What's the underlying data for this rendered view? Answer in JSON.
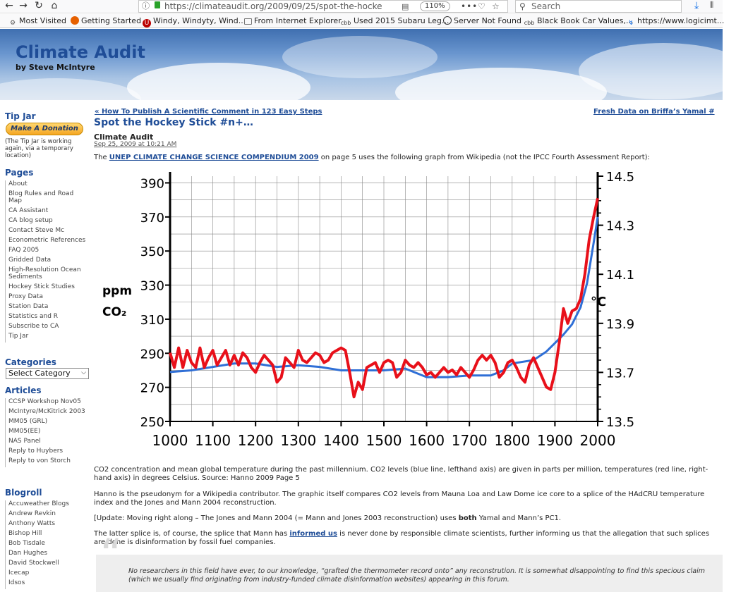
{
  "browser": {
    "url": "https://climateaudit.org/2009/09/25/spot-the-hocke",
    "zoom": "110%",
    "search_placeholder": "Search",
    "bookmarks": [
      "Most Visited",
      "Getting Started",
      "Windy, Windyty, Wind...",
      "From Internet Explorer",
      "Used 2015 Subaru Leg...",
      "Server Not Found",
      "Black Book Car Values,...",
      "https://www.logicimt..."
    ]
  },
  "site": {
    "title": "Climate Audit",
    "tagline": "by Steve McIntyre"
  },
  "sidebar": {
    "tipjar_heading": "Tip Jar",
    "donate_label": "Make A Donation",
    "tipjar_note": "(The Tip Jar is working again, via a temporary location)",
    "pages_heading": "Pages",
    "pages": [
      "About",
      "Blog Rules and Road Map",
      "CA Assistant",
      "CA blog setup",
      "Contact Steve Mc",
      "Econometric References",
      "FAQ 2005",
      "Gridded Data",
      "High-Resolution Ocean Sediments",
      "Hockey Stick Studies",
      "Proxy Data",
      "Station Data",
      "Statistics and R",
      "Subscribe to CA",
      "Tip Jar"
    ],
    "categories_heading": "Categories",
    "category_select": "Select Category",
    "articles_heading": "Articles",
    "articles": [
      "CCSP Workshop Nov05",
      "McIntyre/McKitrick 2003",
      "MM05 (GRL)",
      "MM05(EE)",
      "NAS Panel",
      "Reply to Huybers",
      "Reply to von Storch"
    ],
    "blogroll_heading": "Blogroll",
    "blogroll": [
      "Accuweather Blogs",
      "Andrew Revkin",
      "Anthony Watts",
      "Bishop Hill",
      "Bob Tisdale",
      "Dan Hughes",
      "David Stockwell",
      "Icecap",
      "Idsos"
    ]
  },
  "post": {
    "prev_link": "« How To Publish A Scientific Comment in 123 Easy Steps",
    "next_link": "Fresh Data on Briffa’s Yamal #",
    "title": "Spot the Hockey Stick #n+…",
    "author": "Climate Audit",
    "date": "Sep 25, 2009 at 10:21 AM",
    "intro_pre": "The",
    "intro_link": "UNEP CLIMATE CHANGE SCIENCE COMPENDIUM 2009",
    "intro_post": "on page 5 uses the following graph from Wikipedia (not the IPCC Fourth Assessment Report):",
    "caption": "CO2 concentration and mean global temperature during the past millennium. CO2 levels (blue line, lefthand axis) are given in parts per million, temperatures (red line, right-hand axis) in degrees Celsius. Source: Hanno 2009 Page 5",
    "p2": "Hanno is the pseudonym for a Wikipedia contributor. The graphic itself compares CO2 levels from Mauna Loa and Law Dome ice core to a splice of the HAdCRU temperature index and the Jones and Mann 2004 reconstruction.",
    "p3_pre": "[Update: Moving right along – The Jones and Mann 2004 (= Mann and Jones 2003 reconstruction) uses",
    "p3_bold": "both",
    "p3_post": "Yamal and Mann’s PC1.",
    "p4_pre": "The latter splice is, of course, the splice that Mann has",
    "p4_link": "informed us",
    "p4_post": "is never done by responsible climate scientists, further informing us that the allegation that such splices are done is disinformation by fossil fuel companies.",
    "quote": "No researchers in this field have ever, to our knowledge, “grafted the thermometer record onto” any reconstrution. It is somewhat disappointing to find this specious claim (which we usually find originating from industry-funded climate disinformation websites) appearing in this forum."
  },
  "chart_data": {
    "type": "line",
    "title": "",
    "xlabel": "",
    "ylabel_left_top": "ppm",
    "ylabel_left_bottom": "CO₂",
    "ylabel_right": "°C",
    "xlim": [
      1000,
      2000
    ],
    "ylim_left": [
      250,
      390
    ],
    "ylim_right": [
      13.5,
      14.5
    ],
    "x_ticks": [
      1000,
      1100,
      1200,
      1300,
      1400,
      1500,
      1600,
      1700,
      1800,
      1900,
      2000
    ],
    "y_ticks_left": [
      250,
      270,
      290,
      310,
      330,
      350,
      370,
      390
    ],
    "y_ticks_right": [
      13.5,
      13.7,
      13.9,
      14.1,
      14.3,
      14.5
    ],
    "y_ticks_right_labels": [
      "13.5",
      "13.7",
      "13.9",
      "14.1",
      "14.3",
      "14.5"
    ],
    "grid": true,
    "colors": {
      "co2": "#2f6fd6",
      "temp": "#e8101a"
    },
    "series": [
      {
        "axis": "left",
        "x": [
          1000,
          1050,
          1100,
          1150,
          1200,
          1250,
          1300,
          1350,
          1400,
          1450,
          1500,
          1550,
          1600,
          1650,
          1700,
          1750,
          1780,
          1800,
          1850,
          1880,
          1900,
          1920,
          1940,
          1960,
          1975,
          1990,
          2000
        ],
        "y": [
          279,
          280,
          282,
          284,
          284,
          282,
          283,
          282,
          280,
          280,
          280,
          281,
          276,
          276,
          277,
          277,
          280,
          284,
          286,
          291,
          296,
          301,
          307,
          317,
          331,
          354,
          370
        ]
      },
      {
        "axis": "right",
        "x": [
          1000,
          1010,
          1020,
          1030,
          1040,
          1050,
          1060,
          1070,
          1080,
          1090,
          1100,
          1110,
          1120,
          1130,
          1140,
          1150,
          1160,
          1170,
          1180,
          1190,
          1200,
          1210,
          1220,
          1230,
          1240,
          1250,
          1260,
          1270,
          1280,
          1290,
          1300,
          1310,
          1320,
          1330,
          1340,
          1350,
          1360,
          1370,
          1380,
          1390,
          1400,
          1410,
          1420,
          1430,
          1440,
          1450,
          1460,
          1470,
          1480,
          1490,
          1500,
          1510,
          1520,
          1530,
          1540,
          1550,
          1560,
          1570,
          1580,
          1590,
          1600,
          1610,
          1620,
          1630,
          1640,
          1650,
          1660,
          1670,
          1680,
          1690,
          1700,
          1710,
          1720,
          1730,
          1740,
          1750,
          1760,
          1770,
          1780,
          1790,
          1800,
          1810,
          1820,
          1830,
          1840,
          1850,
          1860,
          1870,
          1880,
          1890,
          1900,
          1910,
          1920,
          1930,
          1940,
          1950,
          1960,
          1970,
          1980,
          1990,
          2000
        ],
        "y": [
          13.78,
          13.72,
          13.8,
          13.72,
          13.79,
          13.74,
          13.72,
          13.8,
          13.72,
          13.76,
          13.79,
          13.73,
          13.76,
          13.79,
          13.73,
          13.77,
          13.73,
          13.78,
          13.76,
          13.72,
          13.7,
          13.74,
          13.77,
          13.75,
          13.73,
          13.66,
          13.68,
          13.76,
          13.74,
          13.72,
          13.79,
          13.75,
          13.74,
          13.76,
          13.78,
          13.77,
          13.74,
          13.75,
          13.78,
          13.79,
          13.8,
          13.79,
          13.7,
          13.6,
          13.66,
          13.63,
          13.72,
          13.73,
          13.74,
          13.7,
          13.74,
          13.75,
          13.74,
          13.68,
          13.7,
          13.75,
          13.73,
          13.72,
          13.74,
          13.72,
          13.69,
          13.7,
          13.68,
          13.7,
          13.72,
          13.7,
          13.71,
          13.69,
          13.72,
          13.7,
          13.68,
          13.71,
          13.75,
          13.77,
          13.75,
          13.77,
          13.74,
          13.68,
          13.7,
          13.74,
          13.75,
          13.72,
          13.68,
          13.66,
          13.73,
          13.76,
          13.72,
          13.68,
          13.64,
          13.63,
          13.7,
          13.82,
          13.96,
          13.9,
          13.95,
          13.96,
          14.0,
          14.1,
          14.24,
          14.33,
          14.41
        ]
      }
    ]
  }
}
